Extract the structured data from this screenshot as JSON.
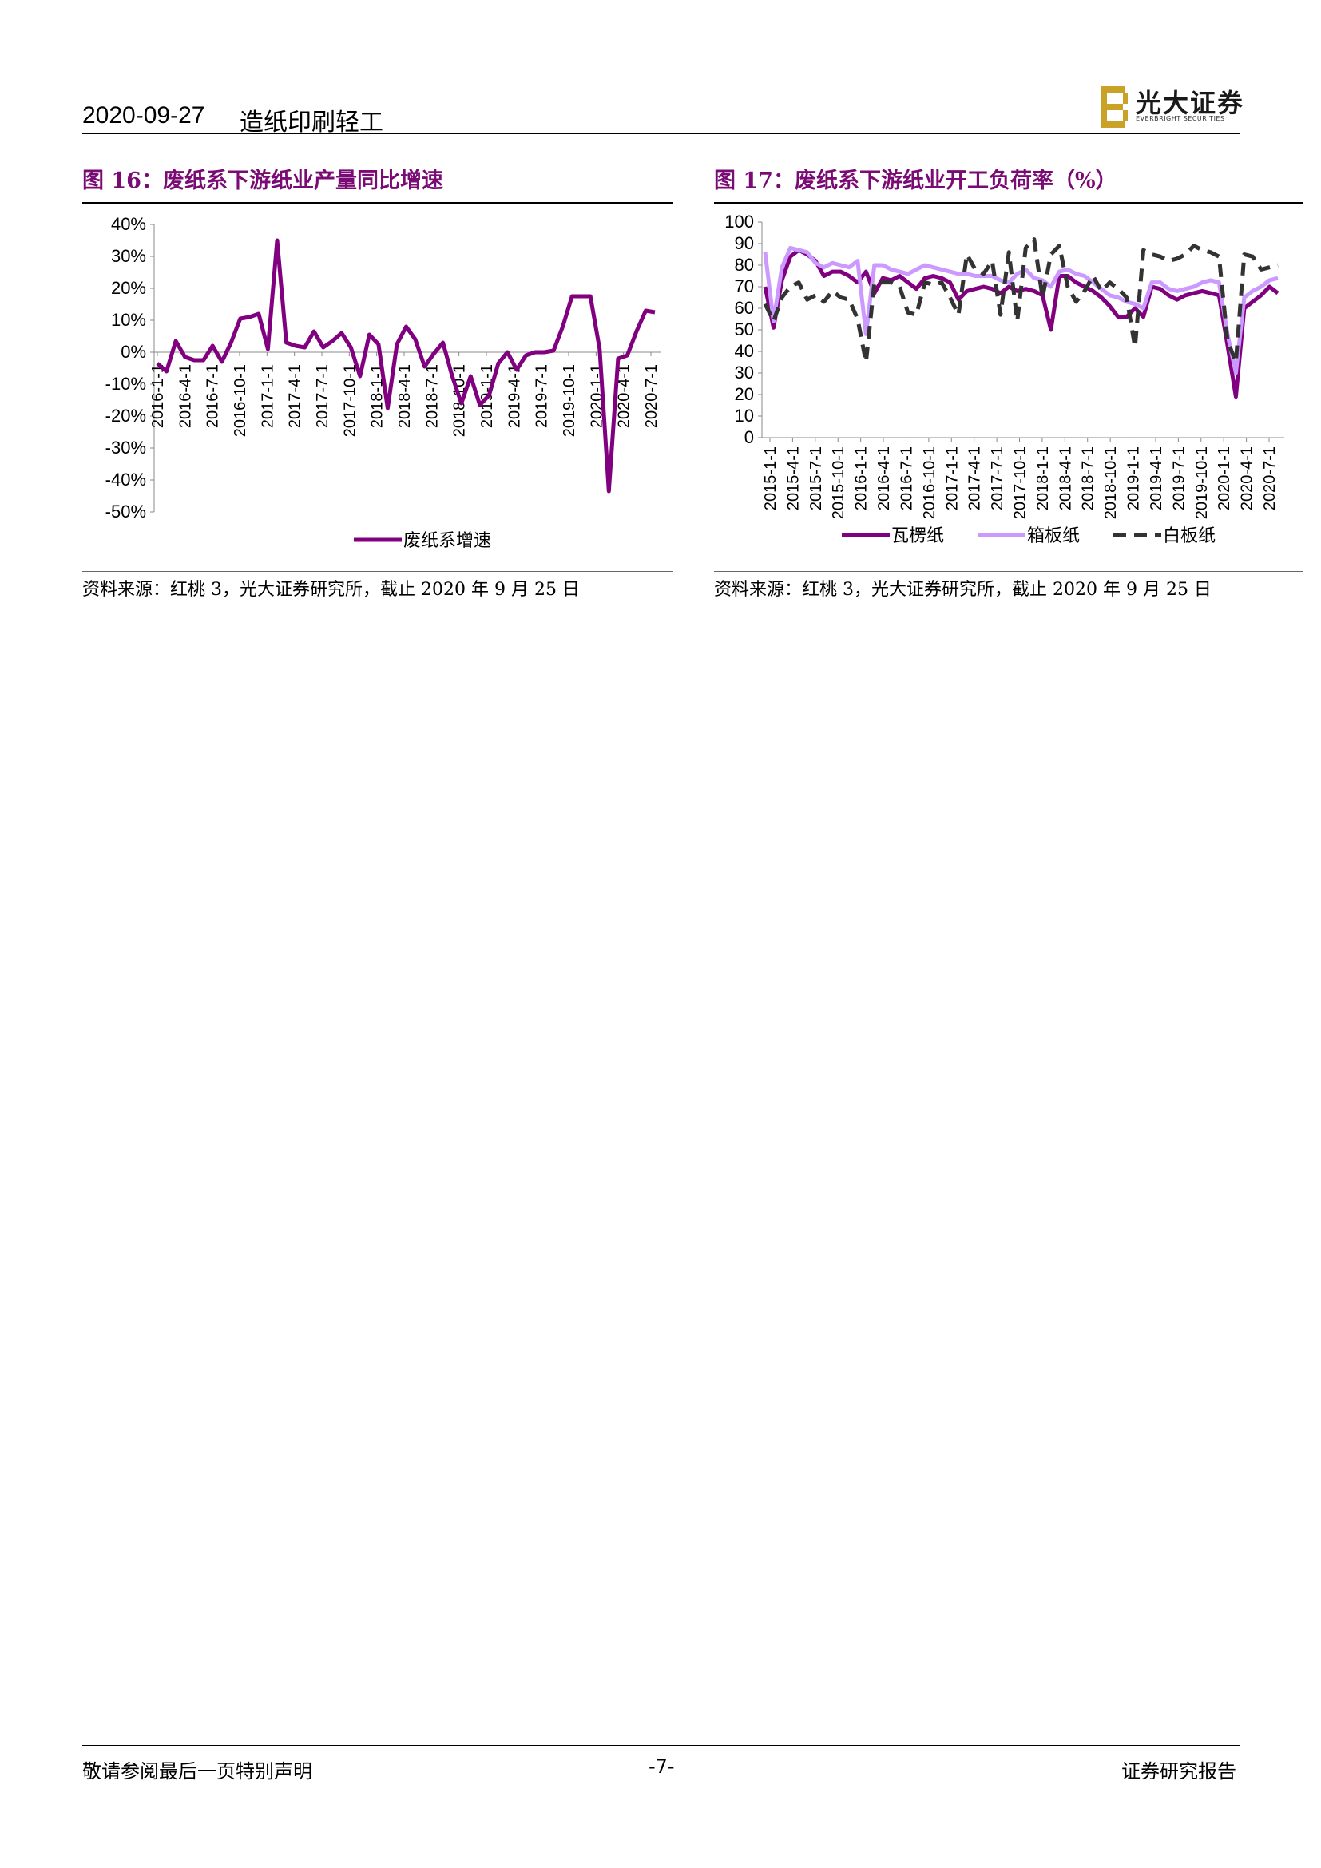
{
  "header": {
    "date": "2020-09-27",
    "sector": "造纸印刷轻工",
    "logo_cn": "光大证券",
    "logo_en": "EVERBRIGHT SECURITIES"
  },
  "figures": [
    {
      "title": "图 16：废纸系下游纸业产量同比增速",
      "source": "资料来源：红桃 3，光大证券研究所，截止 2020 年 9 月 25 日"
    },
    {
      "title": "图 17：废纸系下游纸业开工负荷率（%）",
      "source": "资料来源：红桃 3，光大证券研究所，截止 2020 年 9 月 25 日"
    }
  ],
  "footer": {
    "left": "敬请参阅最后一页特别声明",
    "center": "-7-",
    "right": "证券研究报告"
  },
  "colors": {
    "brand_purple": "#7a0b74",
    "series_purple": "#800080",
    "series_lilac": "#cc99ff",
    "series_dark": "#333333"
  },
  "chart_data": [
    {
      "type": "line",
      "ylim": [
        -50,
        40
      ],
      "yticks": [
        "40%",
        "30%",
        "20%",
        "10%",
        "0%",
        "-10%",
        "-20%",
        "-30%",
        "-40%",
        "-50%"
      ],
      "xticks": [
        "2016-1-1",
        "2016-4-1",
        "2016-7-1",
        "2016-10-1",
        "2017-1-1",
        "2017-4-1",
        "2017-7-1",
        "2017-10-1",
        "2018-1-1",
        "2018-4-1",
        "2018-7-1",
        "2018-10-1",
        "2019-1-1",
        "2019-4-1",
        "2019-7-1",
        "2019-10-1",
        "2020-1-1",
        "2020-4-1",
        "2020-7-1"
      ],
      "legend_position": "bottom",
      "series": [
        {
          "name": "废纸系增速",
          "color": "#800080",
          "style": "solid",
          "values": [
            -3.5,
            -6,
            3.5,
            -1.5,
            -2.5,
            -2.5,
            2,
            -3,
            3,
            10.5,
            11,
            12,
            1,
            35,
            3,
            2,
            1.5,
            6.5,
            1.5,
            3.5,
            6,
            1.5,
            -7.5,
            5.5,
            2.5,
            -17.5,
            2.5,
            8,
            4,
            -4.5,
            -0.5,
            3,
            -7.5,
            -16,
            -7.5,
            -16.5,
            -13.5,
            -3.5,
            0,
            -5.5,
            -1,
            0,
            0,
            0.5,
            8,
            17.5,
            17.5,
            17.5,
            1,
            -43.5,
            -2,
            -1,
            6.5,
            13,
            12.5
          ]
        }
      ]
    },
    {
      "type": "line",
      "ylim": [
        0,
        100
      ],
      "yticks": [
        "100",
        "90",
        "80",
        "70",
        "60",
        "50",
        "40",
        "30",
        "20",
        "10",
        "0"
      ],
      "xticks": [
        "2015-1-1",
        "2015-4-1",
        "2015-7-1",
        "2015-10-1",
        "2016-1-1",
        "2016-4-1",
        "2016-7-1",
        "2016-10-1",
        "2017-1-1",
        "2017-4-1",
        "2017-7-1",
        "2017-10-1",
        "2018-1-1",
        "2018-4-1",
        "2018-7-1",
        "2018-10-1",
        "2019-1-1",
        "2019-4-1",
        "2019-7-1",
        "2019-10-1",
        "2020-1-1",
        "2020-4-1",
        "2020-7-1"
      ],
      "legend_position": "bottom",
      "series": [
        {
          "name": "瓦楞纸",
          "color": "#800080",
          "style": "solid",
          "values": [
            70,
            51,
            73,
            84,
            87,
            85,
            82,
            75,
            77,
            77,
            75,
            72,
            77,
            67,
            74,
            73,
            75,
            72,
            69,
            74,
            75,
            74,
            72,
            64,
            68,
            69,
            70,
            69,
            67,
            70,
            68,
            69,
            68,
            66,
            50,
            75,
            75,
            72,
            70,
            68,
            65,
            61,
            56,
            56,
            60,
            56,
            70,
            69,
            66,
            64,
            66,
            67,
            68,
            67,
            66,
            43,
            19,
            60,
            63,
            66,
            70,
            67
          ]
        },
        {
          "name": "箱板纸",
          "color": "#cc99ff",
          "style": "solid",
          "values": [
            86,
            54,
            79,
            88,
            87,
            86,
            81,
            79,
            81,
            80,
            79,
            82,
            48,
            80,
            80,
            78,
            77,
            76,
            78,
            80,
            79,
            78,
            77,
            76,
            76,
            75,
            75,
            75,
            73,
            72,
            76,
            78,
            74,
            73,
            70,
            77,
            78,
            76,
            75,
            72,
            69,
            66,
            65,
            63,
            62,
            60,
            72,
            72,
            69,
            68,
            69,
            70,
            72,
            73,
            72,
            48,
            30,
            65,
            68,
            70,
            73,
            74
          ]
        },
        {
          "name": "白板纸",
          "color": "#333333",
          "style": "dashed",
          "values": [
            62,
            54,
            65,
            70,
            72,
            64,
            66,
            63,
            68,
            65,
            64,
            55,
            35,
            72,
            72,
            72,
            70,
            58,
            57,
            72,
            71,
            72,
            65,
            57,
            85,
            78,
            76,
            82,
            57,
            86,
            54,
            88,
            92,
            65,
            85,
            89,
            70,
            63,
            68,
            75,
            68,
            72,
            69,
            65,
            42,
            87,
            85,
            84,
            82,
            83,
            85,
            89,
            87,
            86,
            84,
            45,
            35,
            85,
            84,
            78,
            79,
            80
          ]
        }
      ]
    }
  ]
}
